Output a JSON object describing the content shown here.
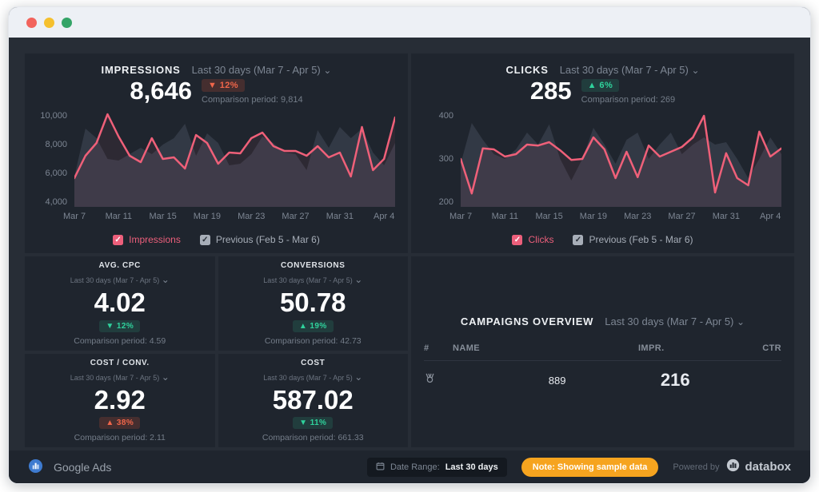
{
  "status_colors": {
    "positive": "#2fd29c",
    "negative": "#f0664a",
    "accent_line": "#ef6079",
    "previous_area": "#454d5a",
    "note": "#f6a41f"
  },
  "panels": [
    {
      "title": "IMPRESSIONS",
      "range": "Last 30 days (Mar 7 - Apr 5)",
      "value": "8,646",
      "arrow": "▼",
      "delta": "12%",
      "tone": "negative",
      "comparison": "Comparison period: 9,814",
      "legend": [
        {
          "label": "Impressions"
        },
        {
          "label": "Previous (Feb 5 - Mar 6)"
        }
      ]
    },
    {
      "title": "CLICKS",
      "range": "Last 30 days (Mar 7 - Apr 5)",
      "value": "285",
      "arrow": "▲",
      "delta": "6%",
      "tone": "positive",
      "comparison": "Comparison period: 269",
      "legend": [
        {
          "label": "Clicks"
        },
        {
          "label": "Previous (Feb 5 - Mar 6)"
        }
      ]
    }
  ],
  "kpis": [
    {
      "title": "AVG. CPC",
      "range": "Last 30 days (Mar 7 - Apr 5)",
      "value": "4.02",
      "arrow": "▼",
      "delta": "12%",
      "tone": "positive",
      "comparison": "Comparison period: 4.59"
    },
    {
      "title": "CONVERSIONS",
      "range": "Last 30 days (Mar 7 - Apr 5)",
      "value": "50.78",
      "arrow": "▲",
      "delta": "19%",
      "tone": "positive",
      "comparison": "Comparison period: 42.73"
    },
    {
      "title": "COST / CONV.",
      "range": "Last 30 days (Mar 7 - Apr 5)",
      "value": "2.92",
      "arrow": "▲",
      "delta": "38%",
      "tone": "negative",
      "comparison": "Comparison period: 2.11"
    },
    {
      "title": "COST",
      "range": "Last 30 days (Mar 7 - Apr 5)",
      "value": "587.02",
      "arrow": "▼",
      "delta": "11%",
      "tone": "positive",
      "comparison": "Comparison period: 661.33"
    }
  ],
  "campaigns": {
    "title": "CAMPAIGNS OVERVIEW",
    "range": "Last 30 days (Mar 7 - Apr 5)",
    "columns": [
      "#",
      "NAME",
      "IMPR.",
      "CTR"
    ],
    "rows": [
      {
        "impr": "889",
        "ctr": "216"
      }
    ]
  },
  "footer": {
    "source": "Google Ads",
    "date_range_label": "Date Range:",
    "date_range_value": "Last 30 days",
    "note": "Note: Showing sample data",
    "powered_by": "Powered by",
    "brand": "databox"
  },
  "chart_data": [
    {
      "type": "line",
      "title": "IMPRESSIONS",
      "x": [
        "Mar 7",
        "Mar 8",
        "Mar 9",
        "Mar 10",
        "Mar 11",
        "Mar 12",
        "Mar 13",
        "Mar 14",
        "Mar 15",
        "Mar 16",
        "Mar 17",
        "Mar 18",
        "Mar 19",
        "Mar 20",
        "Mar 21",
        "Mar 22",
        "Mar 23",
        "Mar 24",
        "Mar 25",
        "Mar 26",
        "Mar 27",
        "Mar 28",
        "Mar 29",
        "Mar 30",
        "Mar 31",
        "Apr 1",
        "Apr 2",
        "Apr 3",
        "Apr 4",
        "Apr 5"
      ],
      "series": [
        {
          "name": "Impressions",
          "style": "line",
          "color": "#ef6079",
          "values": [
            5800,
            7200,
            8000,
            9800,
            8400,
            7200,
            6800,
            8300,
            7000,
            7100,
            6400,
            8500,
            8000,
            6700,
            7400,
            7350,
            8300,
            8650,
            7800,
            7500,
            7500,
            7200,
            7800,
            7100,
            7400,
            5900,
            9000,
            6300,
            7000,
            9600
          ]
        },
        {
          "name": "Previous (Feb 5 - Mar 6)",
          "style": "area",
          "color": "#454d5a",
          "values": [
            5900,
            8900,
            8300,
            7000,
            6900,
            7300,
            7700,
            7300,
            7900,
            8300,
            9200,
            7200,
            8600,
            8000,
            6600,
            6700,
            7300,
            8400,
            8000,
            7400,
            7300,
            6300,
            8800,
            7700,
            9000,
            8300,
            8900,
            7400,
            6600,
            8000
          ]
        }
      ],
      "ylim": [
        4000,
        10000
      ],
      "yticks": [
        "10,000",
        "8,000",
        "6,000",
        "4,000"
      ],
      "xticks": [
        "Mar 7",
        "Mar 11",
        "Mar 15",
        "Mar 19",
        "Mar 23",
        "Mar 27",
        "Mar 31",
        "Apr 4"
      ],
      "grid": false,
      "legend_position": "bottom"
    },
    {
      "type": "line",
      "title": "CLICKS",
      "x": [
        "Mar 7",
        "Mar 8",
        "Mar 9",
        "Mar 10",
        "Mar 11",
        "Mar 12",
        "Mar 13",
        "Mar 14",
        "Mar 15",
        "Mar 16",
        "Mar 17",
        "Mar 18",
        "Mar 19",
        "Mar 20",
        "Mar 21",
        "Mar 22",
        "Mar 23",
        "Mar 24",
        "Mar 25",
        "Mar 26",
        "Mar 27",
        "Mar 28",
        "Mar 29",
        "Mar 30",
        "Mar 31",
        "Apr 1",
        "Apr 2",
        "Apr 3",
        "Apr 4",
        "Apr 5"
      ],
      "series": [
        {
          "name": "Clicks",
          "style": "line",
          "color": "#ef6079",
          "values": [
            300,
            228,
            322,
            320,
            305,
            310,
            330,
            328,
            335,
            318,
            298,
            300,
            345,
            320,
            260,
            315,
            262,
            328,
            305,
            315,
            325,
            345,
            390,
            230,
            312,
            260,
            245,
            357,
            305,
            322
          ]
        },
        {
          "name": "Previous (Feb 5 - Mar 6)",
          "style": "area",
          "color": "#454d5a",
          "values": [
            290,
            375,
            340,
            310,
            300,
            320,
            355,
            330,
            372,
            300,
            255,
            300,
            365,
            330,
            290,
            340,
            355,
            300,
            330,
            355,
            310,
            330,
            345,
            330,
            335,
            300,
            260,
            300,
            345,
            310
          ]
        }
      ],
      "ylim": [
        200,
        400
      ],
      "yticks": [
        "400",
        "300",
        "200"
      ],
      "xticks": [
        "Mar 7",
        "Mar 11",
        "Mar 15",
        "Mar 19",
        "Mar 23",
        "Mar 27",
        "Mar 31",
        "Apr 4"
      ],
      "grid": false,
      "legend_position": "bottom"
    }
  ]
}
